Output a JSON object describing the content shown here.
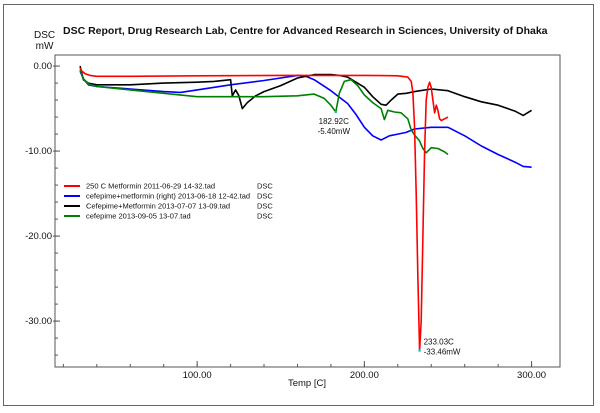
{
  "chart_data": {
    "type": "line",
    "title": "DSC Report, Drug Research Lab, Centre for Advanced Research in Sciences, University of Dhaka",
    "ylabel": "DSC\nmW",
    "ylabel_lines": [
      "DSC",
      "mW"
    ],
    "xlabel": "Temp  [C]",
    "xlim": [
      15,
      317
    ],
    "ylim": [
      -35.4,
      1.3
    ],
    "x_ticks": [
      100,
      200,
      300
    ],
    "x_tick_labels": [
      "100.00",
      "200.00",
      "300.00"
    ],
    "y_ticks": [
      0,
      -10,
      -20,
      -30
    ],
    "y_tick_labels": [
      "0.00",
      "-10.00",
      "-20.00",
      "-30.00"
    ],
    "grid": false,
    "legend_position": "middle-left",
    "series": [
      {
        "name": "250 C Metformin 2011-06-29 14-32.tad",
        "unit": "DSC",
        "color": "#ff0000",
        "x": [
          30,
          31,
          33,
          36,
          40,
          60,
          100,
          150,
          200,
          220,
          226,
          228,
          229,
          230,
          231,
          232,
          233.03,
          234,
          235,
          236,
          237,
          238,
          239,
          240,
          241,
          242,
          243,
          244,
          245,
          246,
          248,
          250
        ],
        "y": [
          -0.2,
          -0.6,
          -0.9,
          -1.1,
          -1.2,
          -1.2,
          -1.15,
          -1.1,
          -1.1,
          -1.15,
          -1.3,
          -1.8,
          -3,
          -7,
          -15,
          -25,
          -33.46,
          -30,
          -20,
          -10,
          -4,
          -2.5,
          -1.9,
          -2.5,
          -4,
          -5.5,
          -4.6,
          -5.2,
          -6.2,
          -6.4,
          -6.2,
          -6.0
        ]
      },
      {
        "name": "cefepime+metformin (right) 2013-06-18 12-42.tad",
        "unit": "DSC",
        "color": "#0000ff",
        "x": [
          30,
          32,
          35,
          40,
          60,
          80,
          90,
          100,
          120,
          140,
          160,
          165,
          170,
          180,
          190,
          195,
          200,
          205,
          210,
          215,
          220,
          225,
          230,
          240,
          250,
          260,
          270,
          280,
          290,
          295,
          300
        ],
        "y": [
          -0.6,
          -1.5,
          -2.2,
          -2.4,
          -2.7,
          -3.0,
          -3.1,
          -2.8,
          -2.2,
          -1.7,
          -1.1,
          -1.2,
          -1.6,
          -2.9,
          -4.4,
          -5.7,
          -7.2,
          -8.2,
          -8.7,
          -8.2,
          -8.0,
          -7.8,
          -7.4,
          -7.2,
          -7.2,
          -8.2,
          -9.4,
          -10.4,
          -11.3,
          -11.8,
          -11.9
        ]
      },
      {
        "name": "Cefepime+Metformin 2013-07-07 13-09.tad",
        "unit": "DSC",
        "color": "#000000",
        "x": [
          30,
          32,
          35,
          40,
          60,
          80,
          100,
          110,
          120,
          121,
          123,
          125,
          127,
          130,
          135,
          140,
          150,
          160,
          170,
          180,
          185,
          190,
          200,
          205,
          210,
          213,
          216,
          220,
          225,
          230,
          240,
          250,
          260,
          270,
          280,
          290,
          295,
          300
        ],
        "y": [
          0,
          -1.6,
          -2.0,
          -2.2,
          -2.2,
          -2.0,
          -1.9,
          -1.8,
          -1.6,
          -3.5,
          -2.8,
          -3.5,
          -5.0,
          -4.3,
          -3.5,
          -3.0,
          -2.3,
          -1.4,
          -1.0,
          -1.0,
          -1.1,
          -1.3,
          -2.5,
          -3.6,
          -4.5,
          -4.6,
          -4.0,
          -3.3,
          -3.2,
          -3.0,
          -2.7,
          -2.9,
          -3.6,
          -4.2,
          -4.6,
          -5.3,
          -5.8,
          -5.2
        ]
      },
      {
        "name": "cefepime 2013-09-05 13-07.tad",
        "unit": "DSC",
        "color": "#008000",
        "x": [
          30,
          32,
          35,
          40,
          60,
          80,
          100,
          120,
          140,
          160,
          170,
          176,
          180,
          182.92,
          185,
          188,
          192,
          196,
          200,
          205,
          210,
          212,
          214,
          218,
          222,
          226,
          228,
          230,
          233,
          235,
          237,
          240,
          244,
          248,
          250
        ],
        "y": [
          -0.4,
          -1.5,
          -2.1,
          -2.4,
          -2.8,
          -3.2,
          -3.6,
          -3.6,
          -3.6,
          -3.5,
          -3.3,
          -3.8,
          -4.6,
          -5.4,
          -3.2,
          -1.8,
          -1.6,
          -2.3,
          -3.4,
          -4.3,
          -5.0,
          -6.3,
          -5.2,
          -5.4,
          -5.5,
          -6.2,
          -7.5,
          -8.1,
          -8.8,
          -9.7,
          -10.2,
          -9.6,
          -9.7,
          -10.1,
          -10.4
        ]
      }
    ],
    "annotations": [
      {
        "series": "cefepime 2013-09-05 13-07.tad",
        "x": 182.92,
        "y": -5.4,
        "lines": [
          "182.92C",
          "-5.40mW"
        ]
      },
      {
        "series": "250 C Metformin 2011-06-29 14-32.tad",
        "x": 233.03,
        "y": -33.46,
        "lines": [
          "233.03C",
          "-33.46mW"
        ]
      }
    ]
  }
}
